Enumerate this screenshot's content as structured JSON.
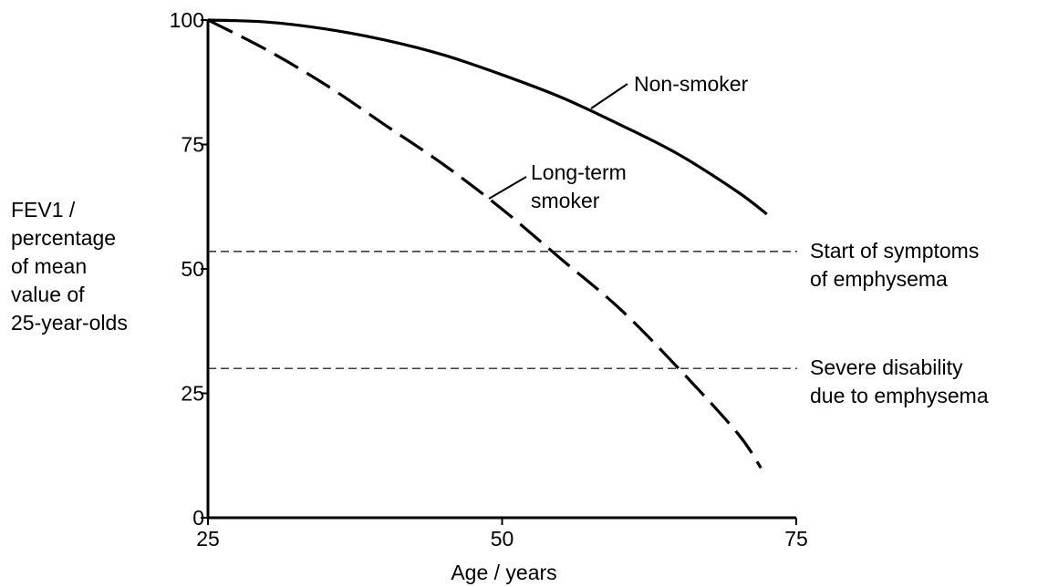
{
  "chart_data": {
    "type": "line",
    "title": "",
    "xlabel": "Age / years",
    "ylabel_lines": [
      "FEV1 /",
      "percentage",
      "of mean",
      "value of",
      "25-year-olds"
    ],
    "xlim": [
      25,
      75
    ],
    "ylim": [
      0,
      100
    ],
    "x_ticks": [
      25,
      50,
      75
    ],
    "y_ticks": [
      0,
      25,
      50,
      75,
      100
    ],
    "grid": false,
    "legend": "none",
    "series": [
      {
        "name": "Non-smoker",
        "label_lines": [
          "Non-smoker"
        ],
        "style": "solid",
        "color": "#000000",
        "x": [
          25,
          30,
          35,
          40,
          45,
          50,
          55,
          60,
          65,
          70,
          72.5
        ],
        "y": [
          100,
          99.6,
          98.2,
          96,
          93,
          89,
          84.5,
          79,
          73,
          65.5,
          61
        ]
      },
      {
        "name": "Long-term smoker",
        "label_lines": [
          "Long-term",
          "smoker"
        ],
        "style": "dashed",
        "color": "#000000",
        "x": [
          25,
          30,
          35,
          40,
          45,
          50,
          55,
          60,
          65,
          70,
          72
        ],
        "y": [
          100,
          94,
          87,
          79,
          71,
          62,
          52,
          42,
          30,
          17,
          10
        ]
      }
    ],
    "reference_lines": [
      {
        "y": 53.5,
        "style": "dashed",
        "label_lines": [
          "Start of symptoms",
          "of emphysema"
        ]
      },
      {
        "y": 30,
        "style": "dashed",
        "label_lines": [
          "Severe disability",
          "due to emphysema"
        ]
      }
    ]
  }
}
